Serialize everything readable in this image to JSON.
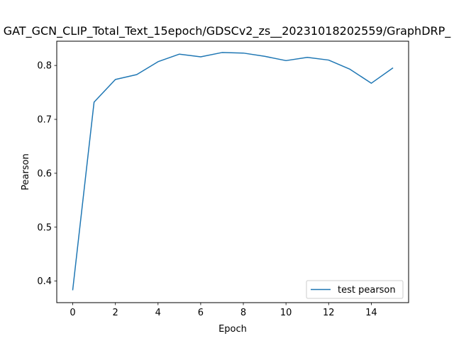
{
  "chart_data": {
    "type": "line",
    "title": "GAT_GCN_CLIP_Total_Text_15epoch/GDSCv2_zs__20231018202559/GraphDRP_",
    "xlabel": "Epoch",
    "ylabel": "Pearson",
    "xlim": [
      -0.75,
      15.75
    ],
    "ylim": [
      0.36,
      0.845
    ],
    "xticks": [
      0,
      2,
      4,
      6,
      8,
      10,
      12,
      14
    ],
    "yticks": [
      0.4,
      0.5,
      0.6,
      0.7,
      0.8
    ],
    "ytick_labels": [
      "0.4",
      "0.5",
      "0.6",
      "0.7",
      "0.8"
    ],
    "grid": false,
    "legend_position": "lower-right",
    "series": [
      {
        "name": "test pearson",
        "color": "#1f77b4",
        "x": [
          0,
          1,
          2,
          3,
          4,
          5,
          6,
          7,
          8,
          9,
          10,
          11,
          12,
          13,
          14,
          15
        ],
        "y": [
          0.384,
          0.732,
          0.774,
          0.783,
          0.807,
          0.821,
          0.816,
          0.824,
          0.823,
          0.817,
          0.809,
          0.815,
          0.81,
          0.793,
          0.767,
          0.795
        ]
      }
    ]
  }
}
